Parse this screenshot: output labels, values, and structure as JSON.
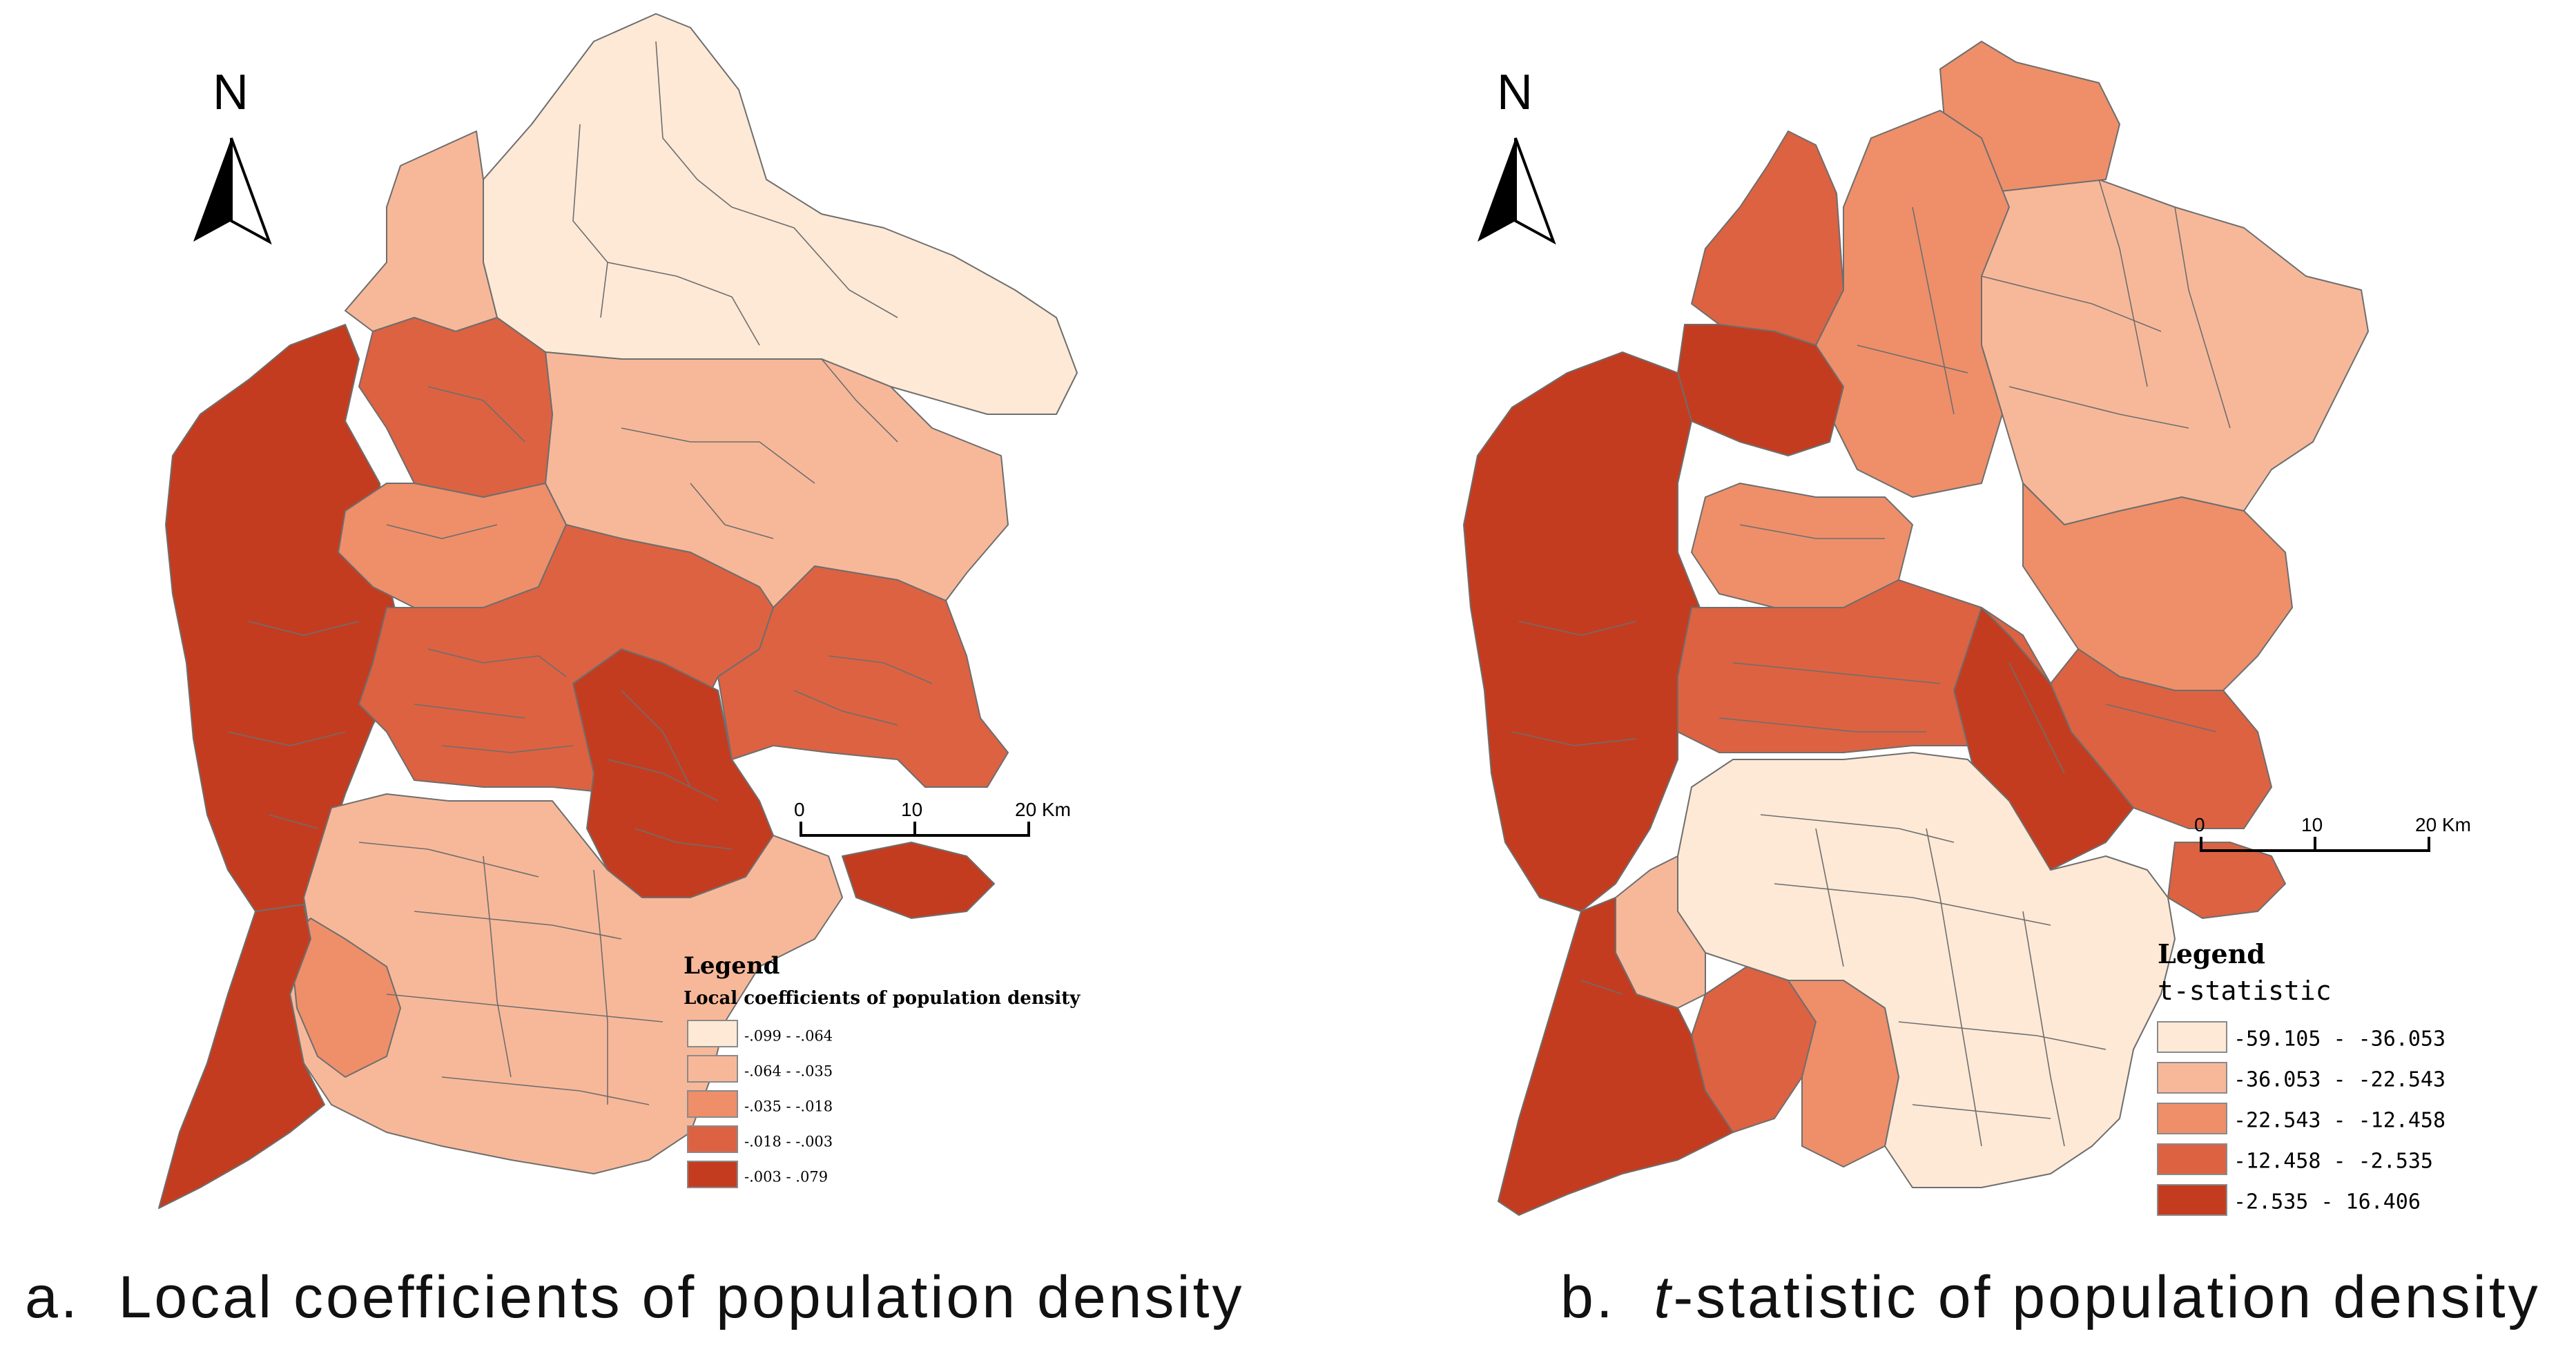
{
  "palette": {
    "c1": "#fde9d6",
    "c2": "#f7b899",
    "c3": "#ee8f6a",
    "c4": "#dc6242",
    "c5": "#c43c1f",
    "boundary": "#6e6e6e"
  },
  "panel_a": {
    "caption_letter": "a.",
    "caption_text": "Local coefficients of population density",
    "north_label": "N",
    "scale": {
      "ticks": [
        "0",
        "10",
        "20 Km"
      ]
    },
    "legend": {
      "title": "Legend",
      "subtitle": "Local coefficients of population density",
      "items": [
        {
          "label": "-.099 - -.064",
          "color": "#fde9d6"
        },
        {
          "label": "-.064 - -.035",
          "color": "#f7b899"
        },
        {
          "label": "-.035 - -.018",
          "color": "#ee8f6a"
        },
        {
          "label": "-.018 - -.003",
          "color": "#dc6242"
        },
        {
          "label": "-.003 - .079",
          "color": "#c43c1f"
        }
      ]
    }
  },
  "panel_b": {
    "caption_letter": "b.",
    "caption_italic": "t",
    "caption_text": "-statistic of population density",
    "north_label": "N",
    "scale": {
      "ticks": [
        "0",
        "10",
        "20 Km"
      ]
    },
    "legend": {
      "title": "Legend",
      "subtitle": "t-statistic",
      "items": [
        {
          "label": "-59.105 - -36.053",
          "color": "#fde9d6"
        },
        {
          "label": "-36.053 - -22.543",
          "color": "#f7b899"
        },
        {
          "label": "-22.543 - -12.458",
          "color": "#ee8f6a"
        },
        {
          "label": "-12.458 - -2.535",
          "color": "#dc6242"
        },
        {
          "label": "-2.535 - 16.406",
          "color": "#c43c1f"
        }
      ]
    }
  }
}
